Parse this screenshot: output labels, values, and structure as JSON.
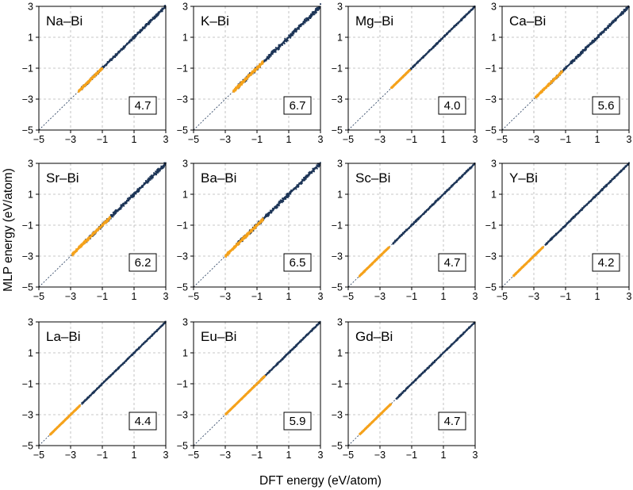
{
  "chart_data": {
    "type": "scatter",
    "xlabel": "DFT energy (eV/atom)",
    "ylabel": "MLP energy (eV/atom)",
    "xlim": [
      -5,
      3
    ],
    "ylim": [
      -5,
      3
    ],
    "xticks": [
      "−5",
      "−3",
      "−1",
      "1",
      "3"
    ],
    "yticks": [
      "−5",
      "−3",
      "−1",
      "1",
      "3"
    ],
    "grid": true,
    "colors": {
      "main": "#1d3557",
      "highlight": "#f5a21b",
      "diagonal": "#1d3557"
    },
    "panels": [
      {
        "label": "Na–Bi",
        "value": "4.7",
        "main": [
          -2.3,
          3.0
        ],
        "orange": [
          -2.5,
          -1.0
        ],
        "spread": 0.1
      },
      {
        "label": "K–Bi",
        "value": "6.7",
        "main": [
          -2.2,
          3.0
        ],
        "orange": [
          -2.5,
          -0.6
        ],
        "spread": 0.15
      },
      {
        "label": "Mg–Bi",
        "value": "4.0",
        "main": [
          -1.6,
          3.0
        ],
        "orange": [
          -2.3,
          -1.1
        ],
        "spread": 0.05
      },
      {
        "label": "Ca–Bi",
        "value": "5.6",
        "main": [
          -2.0,
          3.0
        ],
        "orange": [
          -2.9,
          -1.2
        ],
        "spread": 0.1
      },
      {
        "label": "Sr–Bi",
        "value": "6.2",
        "main": [
          -2.1,
          3.0
        ],
        "orange": [
          -2.9,
          -0.5
        ],
        "spread": 0.13
      },
      {
        "label": "Ba–Bi",
        "value": "6.5",
        "main": [
          -2.3,
          3.0
        ],
        "orange": [
          -3.0,
          -0.6
        ],
        "spread": 0.14
      },
      {
        "label": "Sc–Bi",
        "value": "4.7",
        "main": [
          -2.2,
          3.0
        ],
        "orange": [
          -4.3,
          -2.4
        ],
        "spread": 0.06
      },
      {
        "label": "Y–Bi",
        "value": "4.2",
        "main": [
          -2.3,
          3.0
        ],
        "orange": [
          -4.3,
          -2.4
        ],
        "spread": 0.06
      },
      {
        "label": "La–Bi",
        "value": "4.4",
        "main": [
          -2.3,
          3.0
        ],
        "orange": [
          -4.3,
          -2.4
        ],
        "spread": 0.05
      },
      {
        "label": "Eu–Bi",
        "value": "5.9",
        "main": [
          -1.3,
          3.0
        ],
        "orange": [
          -3.0,
          -0.5
        ],
        "spread": 0.05
      },
      {
        "label": "Gd–Bi",
        "value": "4.7",
        "main": [
          -2.0,
          3.0
        ],
        "orange": [
          -4.3,
          -2.3
        ],
        "spread": 0.05
      }
    ]
  }
}
